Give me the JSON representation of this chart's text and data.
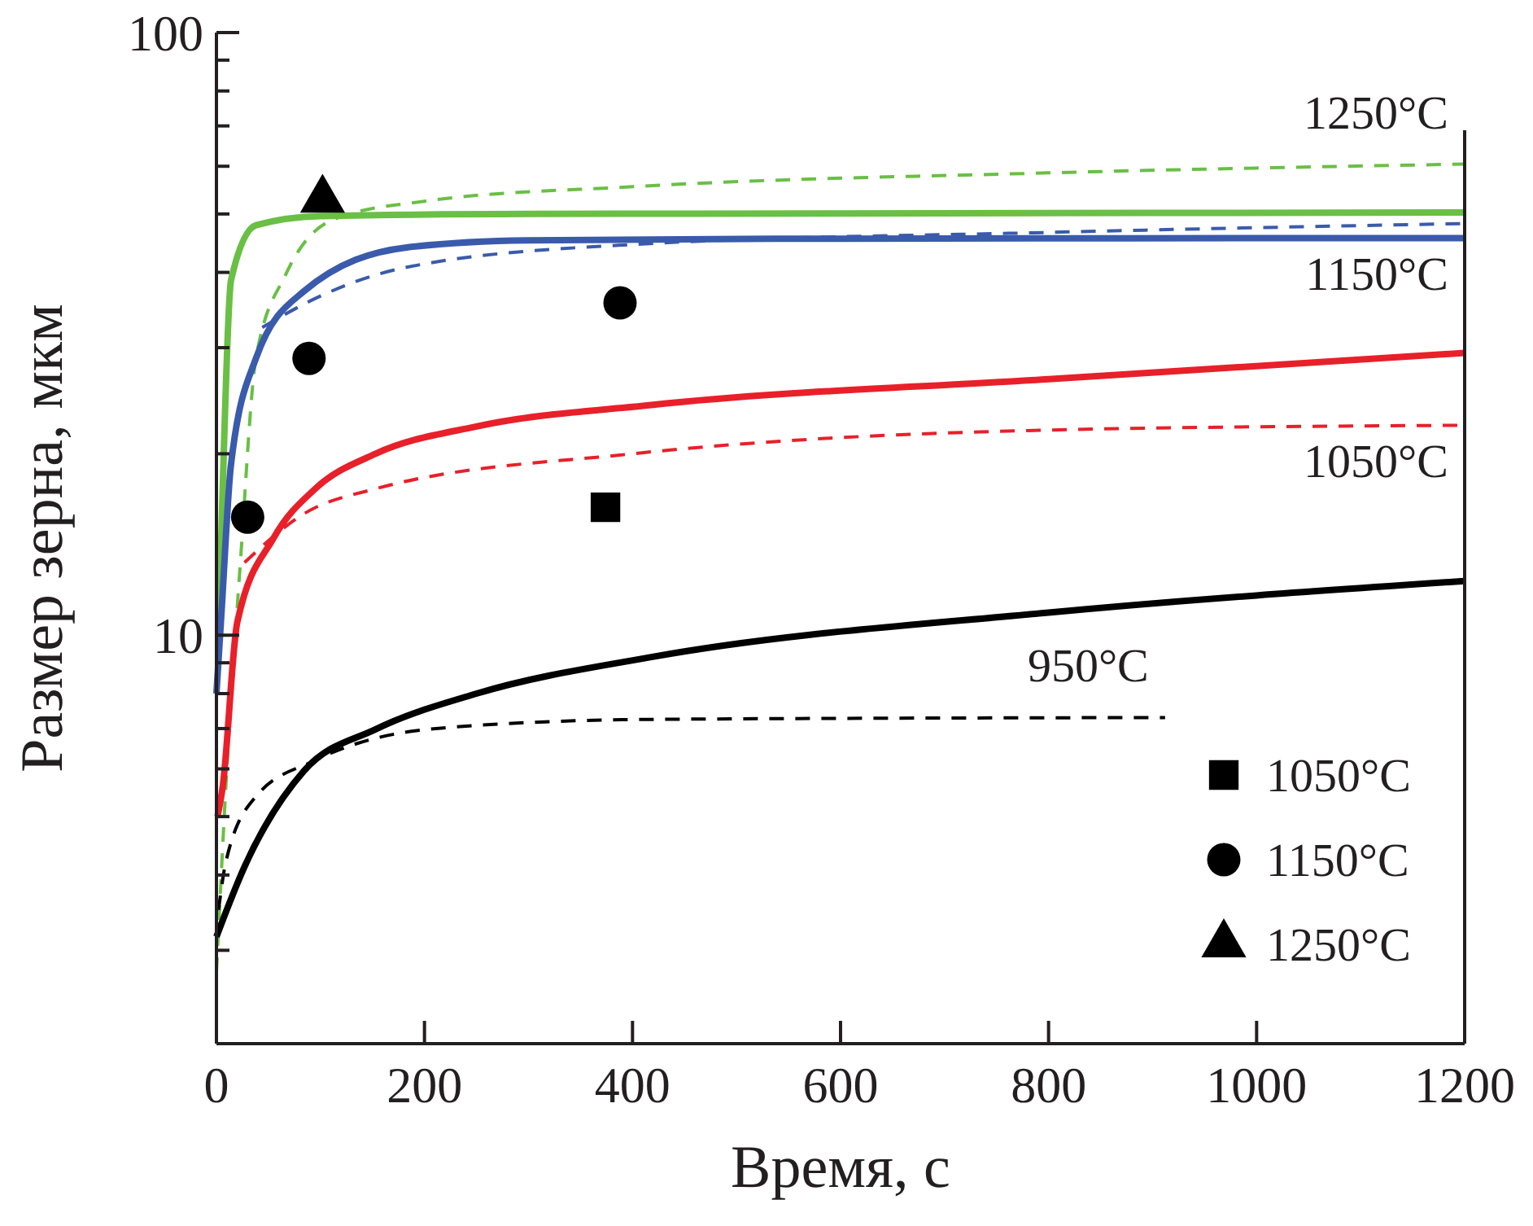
{
  "chart_data": {
    "type": "line",
    "xlabel": "Время, с",
    "ylabel": "Размер зерна, мкм",
    "log": "y",
    "xlim": [
      0,
      1200
    ],
    "ylim": [
      2.1,
      100
    ],
    "xticks": [
      0,
      200,
      400,
      600,
      800,
      1000,
      1200
    ],
    "yticks": [
      {
        "value": 3,
        "label": null
      },
      {
        "value": 4,
        "label": null
      },
      {
        "value": 5,
        "label": null
      },
      {
        "value": 6,
        "label": null
      },
      {
        "value": 7,
        "label": null
      },
      {
        "value": 8,
        "label": null
      },
      {
        "value": 9,
        "label": null
      },
      10,
      {
        "value": 20,
        "label": null
      },
      {
        "value": 30,
        "label": null
      },
      {
        "value": 40,
        "label": null
      },
      {
        "value": 50,
        "label": null
      },
      {
        "value": 60,
        "label": null
      },
      {
        "value": 70,
        "label": null
      },
      {
        "value": 80,
        "label": null
      },
      {
        "value": 90,
        "label": null
      },
      100
    ],
    "grid": false,
    "legend": "bottom right",
    "series": [
      {
        "color": "#6abf45",
        "line_style": "solid",
        "x": [
          2,
          6,
          14,
          38,
          100,
          300,
          600,
          1200
        ],
        "values": [
          10,
          17.5,
          38.8,
          47.9,
          49.6,
          50,
          50.1,
          50.3
        ]
      },
      {
        "name": "1250°C",
        "color": "#6abf45",
        "line_style": "dashed",
        "x": [
          0,
          10,
          23,
          38,
          67,
          113,
          200,
          400,
          800,
          1200
        ],
        "values": [
          2.76,
          6,
          13.2,
          28.8,
          39.8,
          49,
          52.5,
          55.5,
          58.5,
          60.5
        ]
      },
      {
        "name": "1150°C",
        "color": "#3a5bab",
        "line_style": "solid",
        "x": [
          0,
          5,
          14,
          38,
          84,
          183,
          300,
          600,
          1200
        ],
        "values": [
          8,
          11,
          19.2,
          28.8,
          37.2,
          44,
          45.2,
          45.5,
          45.6
        ]
      },
      {
        "color": "#3a5bab",
        "line_style": "dashed",
        "x": [
          44,
          95,
          183,
          400,
          800,
          1200
        ],
        "values": [
          32.4,
          36.2,
          40.8,
          44.5,
          46.6,
          48.2
        ]
      },
      {
        "color": "#e8202a",
        "line_style": "solid",
        "x": [
          1,
          6,
          20,
          55,
          95,
          153,
          250,
          418,
          800,
          1200
        ],
        "values": [
          5,
          5.6,
          10.5,
          14.5,
          17.5,
          20,
          22.2,
          24.1,
          26.6,
          29.4
        ]
      },
      {
        "name": "1050°C",
        "color": "#e8202a",
        "line_style": "dashed",
        "x": [
          27,
          84,
          153,
          400,
          800,
          1200
        ],
        "values": [
          13.2,
          15.9,
          17.5,
          20,
          21.9,
          22.3
        ]
      },
      {
        "color": "#000000",
        "line_style": "solid",
        "x": [
          0,
          27,
          84,
          153,
          250,
          418,
          800,
          1200
        ],
        "values": [
          3.16,
          4.13,
          5.95,
          6.98,
          8,
          9.2,
          10.9,
          12.3
        ]
      },
      {
        "name": "950°C",
        "color": "#000000",
        "line_style": "dashed",
        "x": [
          2,
          9,
          38,
          95,
          211,
          418,
          912
        ],
        "values": [
          3.5,
          4.2,
          5.4,
          6.2,
          7,
          7.25,
          7.3
        ]
      },
      {
        "type": "scatter",
        "name": "1050°C",
        "color": "#000000",
        "marker": "square",
        "x": [
          374
        ],
        "values": [
          16.3
        ]
      },
      {
        "type": "scatter",
        "name": "1150°C",
        "color": "#000000",
        "marker": "circle",
        "x": [
          30,
          89,
          388
        ],
        "values": [
          15.7,
          28.8,
          35.6
        ]
      },
      {
        "type": "scatter",
        "name": "1250°C",
        "color": "#000000",
        "marker": "triangle",
        "x": [
          102
        ],
        "values": [
          52.8
        ]
      }
    ]
  }
}
